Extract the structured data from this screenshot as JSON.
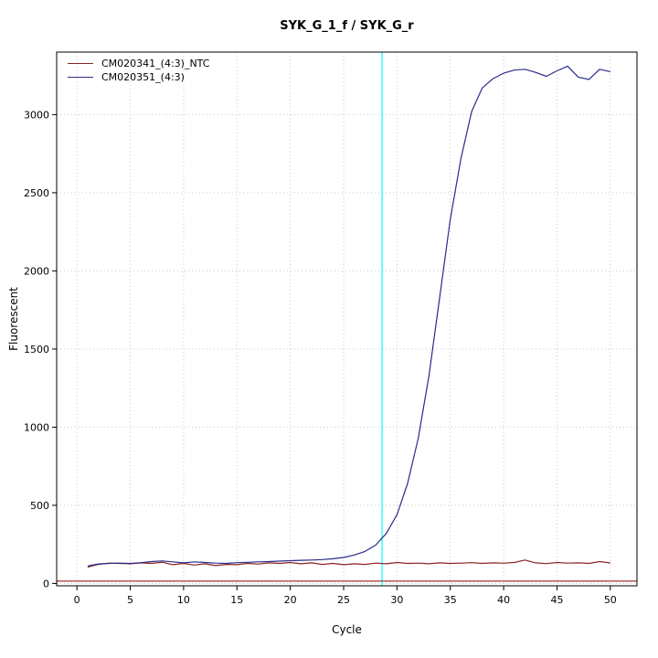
{
  "chart_data": {
    "type": "line",
    "title": "SYK_G_1_f / SYK_G_r",
    "xlabel": "Cycle",
    "ylabel": "Fluorescent",
    "xlim": [
      -1.9,
      52.5
    ],
    "ylim": [
      -15,
      3400
    ],
    "x_ticks": [
      0,
      5,
      10,
      15,
      20,
      25,
      30,
      35,
      40,
      45,
      50
    ],
    "y_ticks": [
      0,
      500,
      1000,
      1500,
      2000,
      2500,
      3000
    ],
    "grid": true,
    "grid_color": "#c8c8c8",
    "legend_position": "top-left",
    "vline": {
      "x": 28.6,
      "color": "#00ffff"
    },
    "threshold_line": {
      "y": 15,
      "color": "#8b0000"
    },
    "x": [
      1,
      2,
      3,
      4,
      5,
      6,
      7,
      8,
      9,
      10,
      11,
      12,
      13,
      14,
      15,
      16,
      17,
      18,
      19,
      20,
      21,
      22,
      23,
      24,
      25,
      26,
      27,
      28,
      29,
      30,
      31,
      32,
      33,
      34,
      35,
      36,
      37,
      38,
      39,
      40,
      41,
      42,
      43,
      44,
      45,
      46,
      47,
      48,
      49,
      50
    ],
    "series": [
      {
        "name": "CM020341_(4:3)_NTC",
        "color": "#8b2323",
        "values": [
          105,
          122,
          130,
          128,
          126,
          132,
          128,
          136,
          120,
          128,
          118,
          126,
          114,
          122,
          120,
          128,
          124,
          132,
          128,
          134,
          126,
          132,
          122,
          128,
          120,
          126,
          122,
          130,
          126,
          134,
          128,
          130,
          126,
          132,
          128,
          130,
          133,
          128,
          132,
          130,
          134,
          150,
          132,
          127,
          134,
          130,
          132,
          128,
          140,
          131
        ]
      },
      {
        "name": "CM020351_(4:3)",
        "color": "#2b2b8c",
        "values": [
          112,
          125,
          128,
          130,
          128,
          133,
          140,
          144,
          138,
          132,
          138,
          134,
          130,
          128,
          133,
          135,
          138,
          140,
          143,
          146,
          148,
          150,
          153,
          158,
          166,
          182,
          205,
          245,
          320,
          440,
          640,
          930,
          1330,
          1830,
          2330,
          2720,
          3020,
          3170,
          3230,
          3265,
          3285,
          3290,
          3270,
          3245,
          3280,
          3310,
          3240,
          3225,
          3290,
          3275
        ]
      }
    ]
  }
}
